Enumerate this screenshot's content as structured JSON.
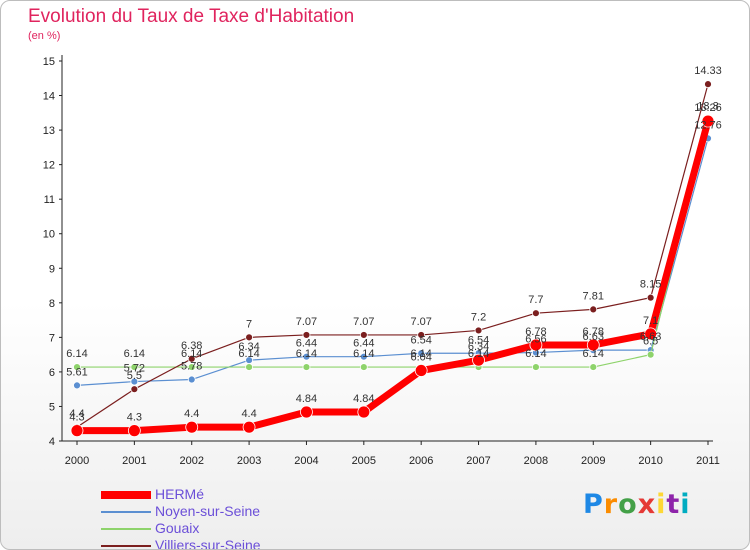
{
  "title": "Evolution du Taux de Taxe d'Habitation",
  "subtitle": "(en %)",
  "logo": {
    "letters": [
      "P",
      "r",
      "o",
      "x",
      "i",
      "t",
      "i"
    ],
    "colors": [
      "#1e88e5",
      "#fb8c00",
      "#43a047",
      "#e53935",
      "#fdd835",
      "#8e24aa",
      "#00acc1"
    ]
  },
  "chart_data": {
    "type": "line",
    "title": "Evolution du Taux de Taxe d'Habitation",
    "ylabel": "(en %)",
    "xlabel": "",
    "x": [
      "2000",
      "2001",
      "2002",
      "2003",
      "2004",
      "2005",
      "2006",
      "2007",
      "2008",
      "2009",
      "2010",
      "2011"
    ],
    "ylim": [
      4,
      15
    ],
    "yticks": [
      4,
      5,
      6,
      7,
      8,
      9,
      10,
      11,
      12,
      13,
      14,
      15
    ],
    "grid": false,
    "legend_position": "bottom-left",
    "series": [
      {
        "name": "HERMé",
        "color": "#ff0000",
        "values": [
          4.3,
          4.3,
          4.4,
          4.4,
          4.84,
          4.84,
          6.04,
          6.34,
          6.78,
          6.78,
          7.1,
          13.26
        ],
        "labels": [
          "4.3",
          "4.3",
          "4.4",
          "4.4",
          "4.84",
          "4.84",
          "6.04",
          "6.34",
          "6.78",
          "6.78",
          "7.1",
          "13.26"
        ]
      },
      {
        "name": "Noyen-sur-Seine",
        "color": "#5b8fd1",
        "values": [
          5.61,
          5.72,
          5.78,
          6.34,
          6.44,
          6.44,
          6.54,
          6.54,
          6.56,
          6.63,
          6.63,
          12.76
        ],
        "labels": [
          "5.61",
          "5.72",
          "5.78",
          "6.34",
          "6.44",
          "6.44",
          "6.54",
          "6.54",
          "6.56",
          "6.63",
          "6.63",
          "12.76"
        ]
      },
      {
        "name": "Gouaix",
        "color": "#8ed36b",
        "values": [
          6.14,
          6.14,
          6.14,
          6.14,
          6.14,
          6.14,
          6.14,
          6.14,
          6.14,
          6.14,
          6.5,
          13.3
        ],
        "labels": [
          "6.14",
          "6.14",
          "6.14",
          "6.14",
          "6.14",
          "6.14",
          "6.14",
          "6.14",
          "6.14",
          "6.14",
          "6.5",
          "13.3"
        ]
      },
      {
        "name": "Villiers-sur-Seine",
        "color": "#7b1f1f",
        "values": [
          4.4,
          5.5,
          6.38,
          7,
          7.07,
          7.07,
          7.07,
          7.2,
          7.7,
          7.81,
          8.15,
          14.33
        ],
        "labels": [
          "4.4",
          "5.5",
          "6.38",
          "7",
          "7.07",
          "7.07",
          "7.07",
          "7.2",
          "7.7",
          "7.81",
          "8.15",
          "14.33"
        ]
      }
    ]
  }
}
